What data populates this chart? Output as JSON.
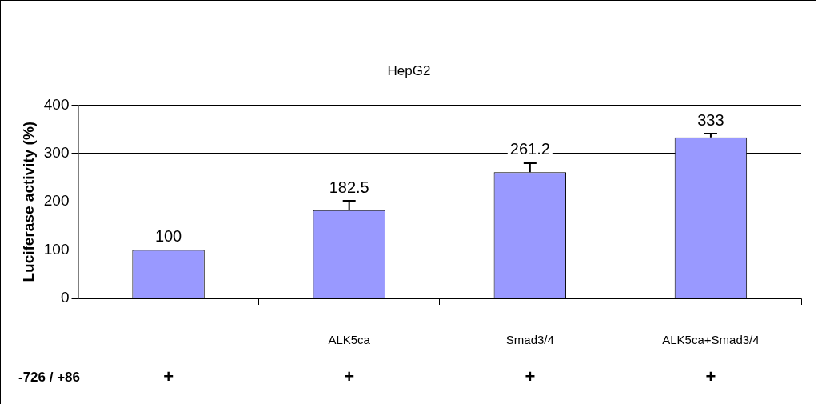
{
  "chart_data": {
    "type": "bar",
    "title": "HepG2",
    "ylabel": "Luciferase activity (%)",
    "categories": [
      null,
      "ALK5ca",
      "Smad3/4",
      "ALK5ca+Smad3/4"
    ],
    "values": [
      100,
      182.5,
      261.2,
      333
    ],
    "errors": [
      null,
      [
        182.5,
        202
      ],
      [
        261.2,
        280
      ],
      [
        333,
        341
      ]
    ],
    "color": "#9999ff",
    "data_labels": true,
    "ylim": [
      0,
      400
    ],
    "yticks": [
      0,
      100,
      200,
      300,
      400
    ],
    "grid": "y",
    "legend": false,
    "annotations": [
      "-726 / +86",
      "+",
      "+",
      "+",
      "+"
    ]
  }
}
